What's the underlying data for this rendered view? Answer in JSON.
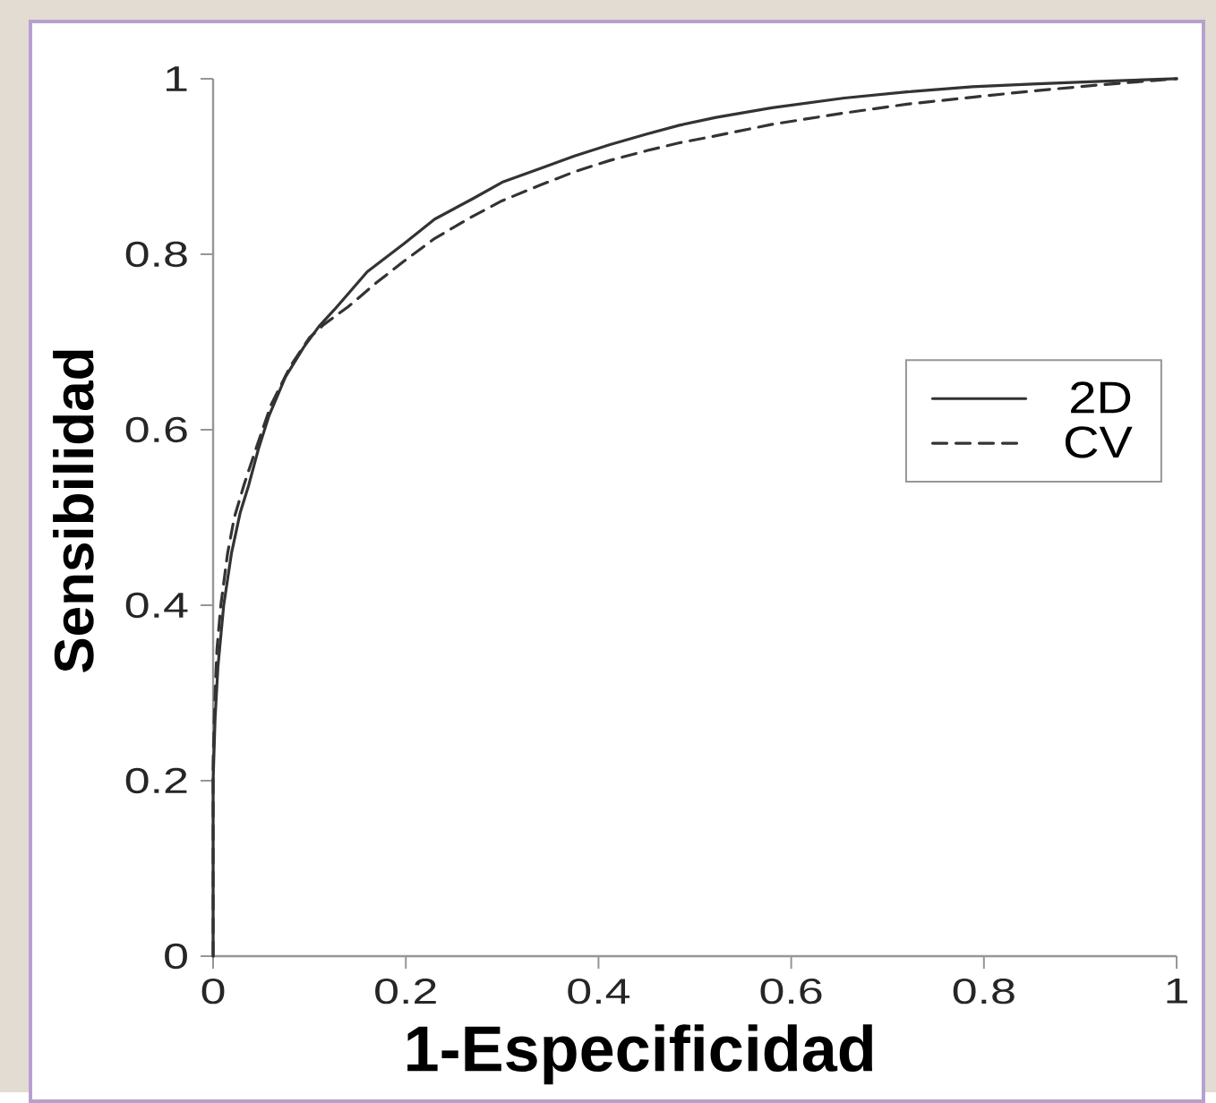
{
  "chart_data": {
    "type": "line",
    "xlabel": "1-Especificidad",
    "ylabel": "Sensibilidad",
    "xlim": [
      0,
      1
    ],
    "ylim": [
      0,
      1
    ],
    "xticks": [
      0,
      0.2,
      0.4,
      0.6,
      0.8,
      1
    ],
    "yticks": [
      0,
      0.2,
      0.4,
      0.6,
      0.8,
      1
    ],
    "legend": "right",
    "series": [
      {
        "name": "2D",
        "color": "#333333",
        "line_style": "solid",
        "x": [
          0,
          0,
          0.002,
          0.005,
          0.011,
          0.019,
          0.028,
          0.037,
          0.047,
          0.058,
          0.075,
          0.094,
          0.11,
          0.126,
          0.16,
          0.198,
          0.23,
          0.269,
          0.3,
          0.34,
          0.375,
          0.412,
          0.45,
          0.484,
          0.522,
          0.58,
          0.655,
          0.72,
          0.788,
          0.85,
          0.92,
          1
        ],
        "values": [
          0,
          0.2,
          0.27,
          0.33,
          0.4,
          0.459,
          0.505,
          0.537,
          0.578,
          0.616,
          0.66,
          0.694,
          0.718,
          0.737,
          0.78,
          0.812,
          0.84,
          0.863,
          0.882,
          0.898,
          0.912,
          0.925,
          0.937,
          0.947,
          0.956,
          0.967,
          0.978,
          0.985,
          0.991,
          0.994,
          0.997,
          1
        ]
      },
      {
        "name": "CV",
        "color": "#333333",
        "line_style": "dashed",
        "x": [
          0,
          0,
          0.002,
          0.004,
          0.008,
          0.015,
          0.022,
          0.032,
          0.045,
          0.06,
          0.08,
          0.1,
          0.115,
          0.14,
          0.17,
          0.198,
          0.23,
          0.269,
          0.3,
          0.34,
          0.375,
          0.412,
          0.45,
          0.484,
          0.522,
          0.58,
          0.655,
          0.72,
          0.788,
          0.85,
          0.92,
          1
        ],
        "values": [
          0,
          0.22,
          0.3,
          0.35,
          0.4,
          0.459,
          0.5,
          0.537,
          0.58,
          0.628,
          0.672,
          0.705,
          0.72,
          0.74,
          0.768,
          0.792,
          0.818,
          0.843,
          0.861,
          0.879,
          0.894,
          0.907,
          0.918,
          0.927,
          0.935,
          0.948,
          0.961,
          0.971,
          0.979,
          0.986,
          0.993,
          1
        ]
      }
    ]
  }
}
